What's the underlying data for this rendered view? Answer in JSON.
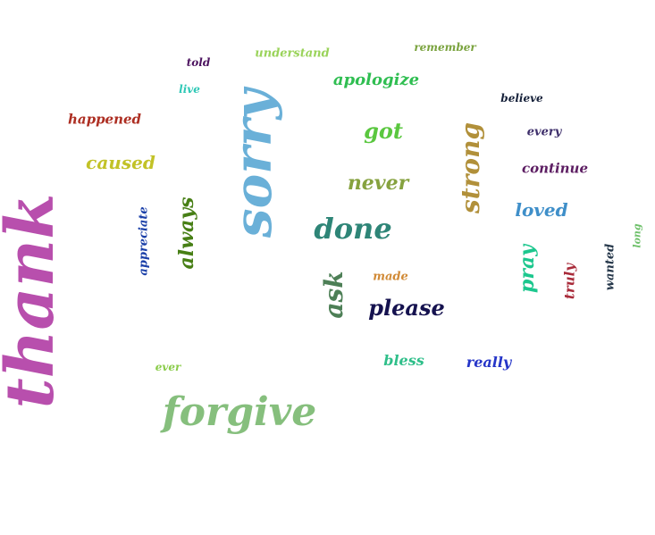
{
  "words": [
    {
      "text": "thank",
      "color": "#b84fad",
      "orientation": "vertical"
    },
    {
      "text": "sorry",
      "color": "#6ab0d8",
      "orientation": "vertical"
    },
    {
      "text": "forgive",
      "color": "#86bf7d",
      "orientation": "horizontal"
    },
    {
      "text": "done",
      "color": "#2e8577",
      "orientation": "horizontal"
    },
    {
      "text": "please",
      "color": "#15124f",
      "orientation": "horizontal"
    },
    {
      "text": "ask",
      "color": "#4d7f56",
      "orientation": "vertical"
    },
    {
      "text": "strong",
      "color": "#b1903a",
      "orientation": "vertical"
    },
    {
      "text": "never",
      "color": "#86a23f",
      "orientation": "horizontal"
    },
    {
      "text": "got",
      "color": "#5ac73f",
      "orientation": "horizontal"
    },
    {
      "text": "apologize",
      "color": "#2fbe51",
      "orientation": "horizontal"
    },
    {
      "text": "caused",
      "color": "#c2c227",
      "orientation": "horizontal"
    },
    {
      "text": "happened",
      "color": "#ad2e22",
      "orientation": "horizontal"
    },
    {
      "text": "always",
      "color": "#477f15",
      "orientation": "vertical"
    },
    {
      "text": "appreciate",
      "color": "#1a3fa8",
      "orientation": "vertical"
    },
    {
      "text": "loved",
      "color": "#3f8fc9",
      "orientation": "horizontal"
    },
    {
      "text": "continue",
      "color": "#5c1d62",
      "orientation": "horizontal"
    },
    {
      "text": "every",
      "color": "#3e2f6b",
      "orientation": "horizontal"
    },
    {
      "text": "believe",
      "color": "#16213a",
      "orientation": "horizontal"
    },
    {
      "text": "remember",
      "color": "#7aa33e",
      "orientation": "horizontal"
    },
    {
      "text": "understand",
      "color": "#9ad35a",
      "orientation": "horizontal"
    },
    {
      "text": "told",
      "color": "#4c135f",
      "orientation": "horizontal"
    },
    {
      "text": "live",
      "color": "#2ec8b6",
      "orientation": "horizontal"
    },
    {
      "text": "pray",
      "color": "#1cc78e",
      "orientation": "vertical"
    },
    {
      "text": "truly",
      "color": "#a92b3a",
      "orientation": "vertical"
    },
    {
      "text": "wanted",
      "color": "#25374a",
      "orientation": "vertical"
    },
    {
      "text": "long",
      "color": "#6ec06a",
      "orientation": "vertical"
    },
    {
      "text": "made",
      "color": "#d18a36",
      "orientation": "horizontal"
    },
    {
      "text": "bless",
      "color": "#2fbf8a",
      "orientation": "horizontal"
    },
    {
      "text": "really",
      "color": "#2535c8",
      "orientation": "horizontal"
    },
    {
      "text": "ever",
      "color": "#8acc4a",
      "orientation": "horizontal"
    }
  ]
}
